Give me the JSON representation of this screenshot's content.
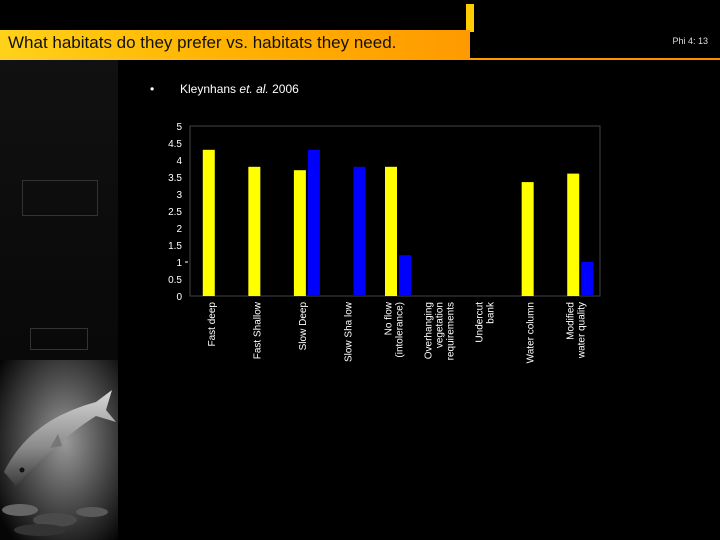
{
  "slide": {
    "title": "What habitats do they prefer vs. habitats they need.",
    "page_number": "Phi 4: 13",
    "bullet": "•",
    "citation_author": "Kleynhans",
    "citation_etal": "et. al.",
    "citation_year": "2006"
  },
  "colors": {
    "title_bar": "#ffc000",
    "series_1": "#ffff00",
    "series_2": "#0000ff",
    "plot_bg": "#000000"
  },
  "chart_data": {
    "type": "bar",
    "categories": [
      "Fast deep",
      "Fast Shallow",
      "Slow Deep",
      "Slow Sha low",
      "No flow (intolerance)",
      "Overhanging vegetation requirements",
      "Undercut bank",
      "Water column",
      "Modified water quality"
    ],
    "category_lines": [
      [
        "Fast deep"
      ],
      [
        "Fast Shallow"
      ],
      [
        "Slow Deep"
      ],
      [
        "Slow Sha low"
      ],
      [
        "No flow",
        "(intolerance)"
      ],
      [
        "Overhanging",
        "vegetation",
        "requirements"
      ],
      [
        "Undercut",
        "bank"
      ],
      [
        "Water column"
      ],
      [
        "Modified",
        "water quality"
      ]
    ],
    "series": [
      {
        "values": [
          4.3,
          3.8,
          3.7,
          null,
          3.8,
          null,
          null,
          3.35,
          3.6
        ]
      },
      {
        "values": [
          null,
          null,
          4.3,
          3.8,
          1.2,
          null,
          null,
          null,
          1.0
        ]
      }
    ],
    "ylim": [
      0,
      5
    ],
    "yticks": [
      "0",
      "0.5",
      "1",
      "1.5",
      "2",
      "2.5",
      "3",
      "3.5",
      "4",
      "4.5",
      "5"
    ],
    "legend": "none",
    "grid": false
  }
}
